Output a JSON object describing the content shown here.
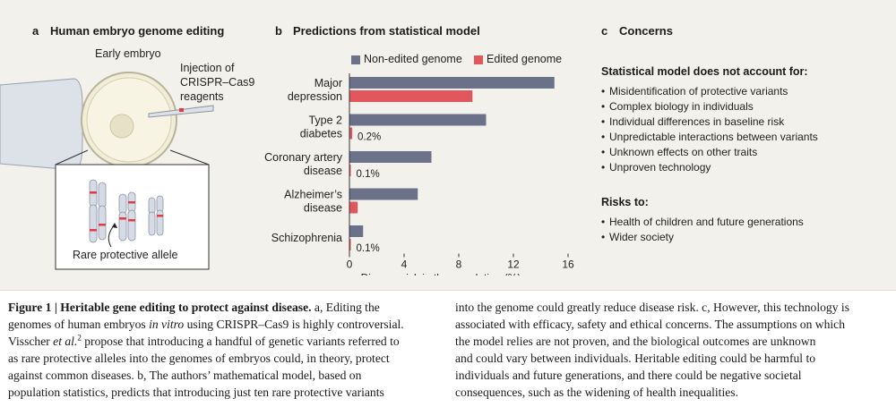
{
  "panel_a": {
    "letter": "a",
    "title": "Human embryo genome editing",
    "early_embryo_label": "Early embryo",
    "injection_label_lines": [
      "Injection of",
      "CRISPR–Cas9",
      "reagents"
    ],
    "allele_label": "Rare protective allele",
    "colors": {
      "chromosome": "#d7dbe6",
      "band": "#e23a47",
      "embryo_fill": "#f4f1dc",
      "pipette": "#dde1e8"
    }
  },
  "panel_b": {
    "letter": "b",
    "title": "Predictions from statistical model",
    "legend": [
      {
        "label": "Non-edited genome",
        "color": "#6a7188"
      },
      {
        "label": "Edited genome",
        "color": "#e0585c"
      }
    ]
  },
  "chart_data": {
    "type": "bar",
    "orientation": "horizontal",
    "title": "Predictions from statistical model",
    "categories": [
      {
        "lines": [
          "Major",
          "depression"
        ],
        "non_edited": 15.0,
        "edited": 9.0,
        "edited_label": ""
      },
      {
        "lines": [
          "Type 2",
          "diabetes"
        ],
        "non_edited": 10.0,
        "edited": 0.2,
        "edited_label": "0.2%"
      },
      {
        "lines": [
          "Coronary artery",
          "disease"
        ],
        "non_edited": 6.0,
        "edited": 0.1,
        "edited_label": "0.1%"
      },
      {
        "lines": [
          "Alzheimer’s",
          "disease"
        ],
        "non_edited": 5.0,
        "edited": 0.6,
        "edited_label": ""
      },
      {
        "lines": [
          "Schizophrenia"
        ],
        "non_edited": 1.0,
        "edited": 0.1,
        "edited_label": "0.1%"
      }
    ],
    "series": [
      {
        "name": "Non-edited genome",
        "color": "#6a7188"
      },
      {
        "name": "Edited genome",
        "color": "#e0585c"
      }
    ],
    "xlabel": "Disease risk in the population (%)",
    "xticks": [
      "0",
      "4",
      "8",
      "12",
      "16"
    ],
    "xlim": [
      0,
      16
    ]
  },
  "panel_c": {
    "letter": "c",
    "title": "Concerns",
    "model_heading": "Statistical model does not account for:",
    "model_items": [
      "Misidentification of protective variants",
      "Complex biology in individuals",
      "Individual differences in baseline risk",
      "Unpredictable interactions between variants",
      "Unknown effects on other traits",
      "Unproven technology"
    ],
    "risks_heading": "Risks to:",
    "risk_items": [
      "Health of children and future generations",
      "Wider society"
    ],
    "bullet": "•"
  },
  "caption": {
    "label": "Figure 1 | Heritable gene editing to protect against disease.",
    "left_line1_rest": " a, Editing the",
    "left_line2_pre": "genomes of human embryos ",
    "left_line2_italic": "in vitro",
    "left_line2_post": " using CRISPR–Cas9 is highly controversial.",
    "left_line3_pre": "Visscher ",
    "left_line3_italic": "et al.",
    "left_line3_sup": "2",
    "left_line3_post": " propose that introducing a handful of genetic variants referred to",
    "left_line4": "as rare protective alleles into the genomes of embryos could, in theory, protect",
    "left_line5": "against common diseases. b, The authors’ mathematical model, based on",
    "left_line6": "population statistics, predicts that introducing just ten rare protective variants",
    "right_line1": "into the genome could greatly reduce disease risk. c, However, this technology is",
    "right_line2": "associated with efficacy, safety and ethical concerns. The assumptions on which",
    "right_line3": "the model relies are not proven, and the biological outcomes are unknown",
    "right_line4": "and could vary between individuals. Heritable editing could be harmful to",
    "right_line5": "individuals and future generations, and there could be negative societal",
    "right_line6": "consequences, such as the widening of health inequalities."
  }
}
